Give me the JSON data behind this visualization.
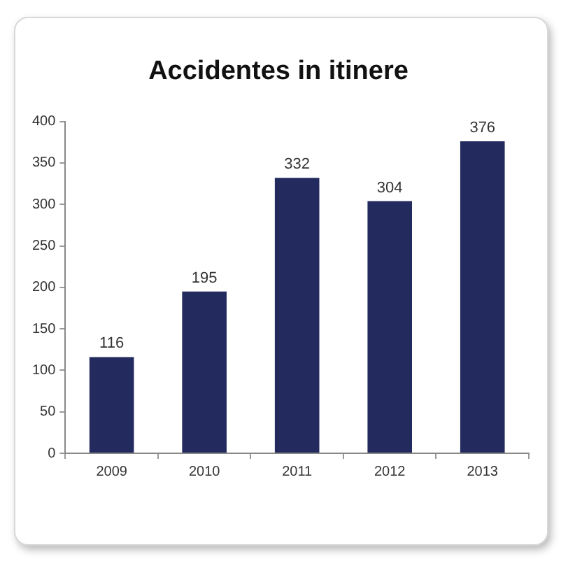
{
  "chart_data": {
    "type": "bar",
    "title": "Accidentes in itinere",
    "categories": [
      "2009",
      "2010",
      "2011",
      "2012",
      "2013"
    ],
    "values": [
      116,
      195,
      332,
      304,
      376
    ],
    "color": "#222a5e",
    "ylim": [
      0,
      400
    ],
    "yticks": [
      0,
      50,
      100,
      150,
      200,
      250,
      300,
      350,
      400
    ],
    "grid": false,
    "legend": false,
    "data_labels": true
  }
}
